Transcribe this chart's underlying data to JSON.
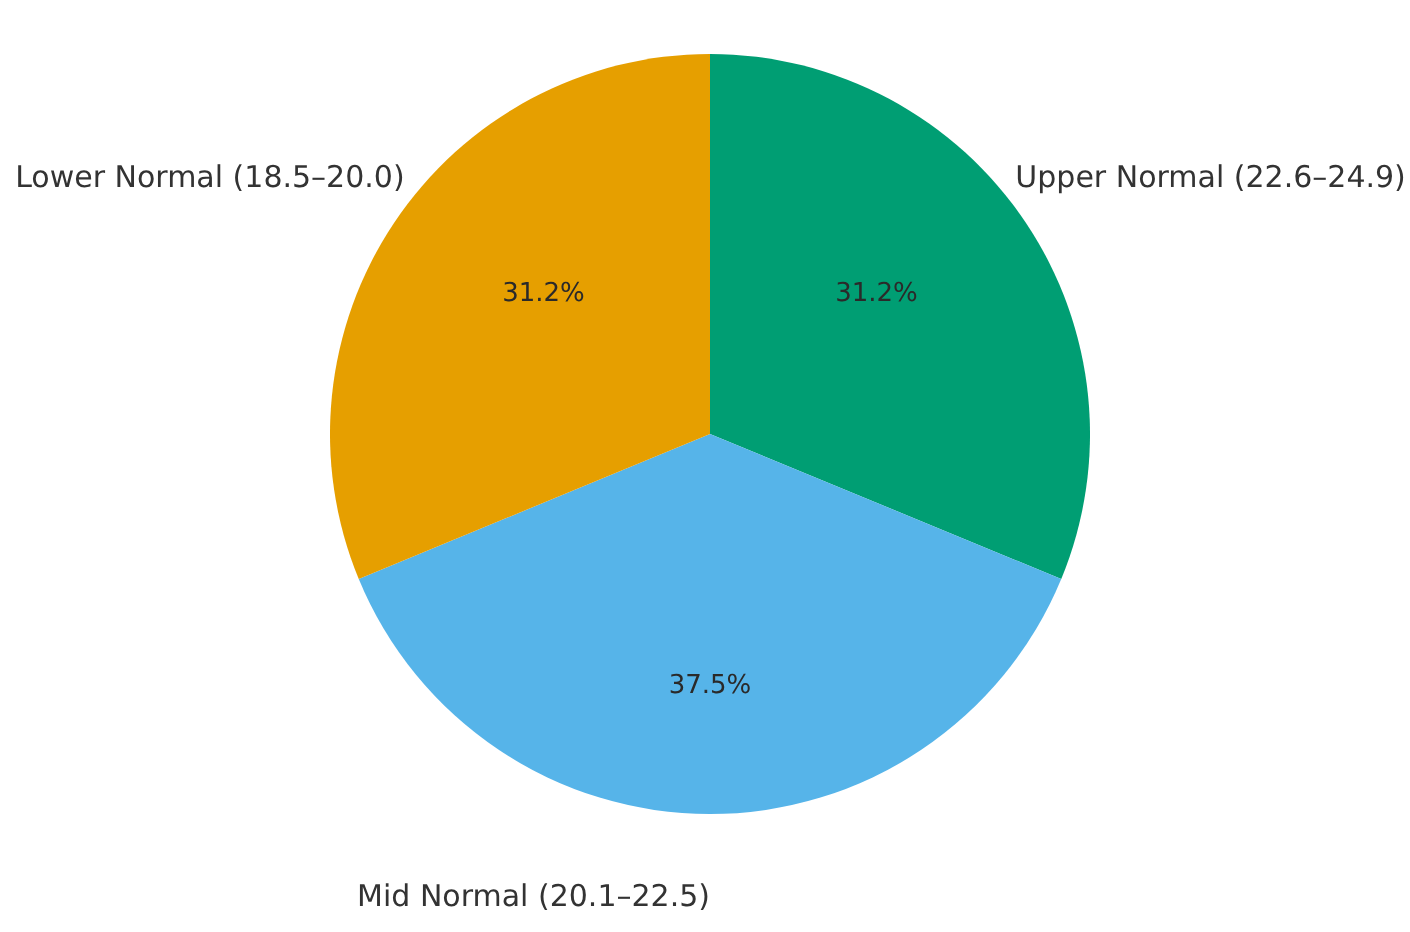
{
  "chart_data": {
    "type": "pie",
    "categories": [
      "Upper Normal (22.6–24.9)",
      "Mid Normal (20.1–22.5)",
      "Lower Normal (18.5–20.0)"
    ],
    "values": [
      31.2,
      37.5,
      31.2
    ],
    "colors": [
      "#009e73",
      "#56b4e9",
      "#e69f00"
    ],
    "value_labels": [
      "31.2%",
      "37.5%",
      "31.2%"
    ]
  }
}
